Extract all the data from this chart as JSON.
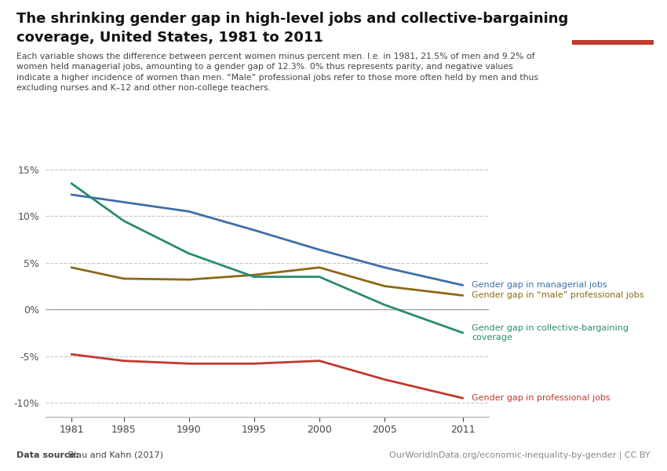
{
  "title_line1": "The shrinking gender gap in high-level jobs and collective-bargaining",
  "title_line2": "coverage, United States, 1981 to 2011",
  "subtitle": "Each variable shows the difference between percent women minus percent men. I.e. in 1981, 21.5% of men and 9.2% of\nwomen held managerial jobs, amounting to a gender gap of 12.3%. 0% thus represents parity, and negative values\nindicate a higher incidence of women than men. “Male” professional jobs refer to those more often held by men and thus\nexcluding nurses and K–12 and other non-college teachers.",
  "datasource_bold": "Data source:",
  "datasource_plain": " Blau and Kahn (2017)",
  "url": "OurWorldInData.org/economic-inequality-by-gender | CC BY",
  "series": {
    "managerial": {
      "label": "Gender gap in managerial jobs",
      "color": "#3d6fa8",
      "years": [
        1981,
        1985,
        1990,
        1995,
        2000,
        2005,
        2011
      ],
      "values": [
        12.3,
        11.5,
        10.5,
        8.5,
        6.4,
        4.5,
        2.6
      ]
    },
    "male_professional": {
      "label": "Gender gap in “male” professional jobs",
      "color": "#8b6914",
      "years": [
        1981,
        1985,
        1990,
        1995,
        2000,
        2005,
        2011
      ],
      "values": [
        4.5,
        3.3,
        3.2,
        3.7,
        4.5,
        2.5,
        1.5
      ]
    },
    "collective": {
      "label": "Gender gap in collective-bargaining\ncoverage",
      "color": "#2a8a72",
      "years": [
        1981,
        1985,
        1990,
        1995,
        2000,
        2005,
        2011
      ],
      "values": [
        13.5,
        9.5,
        6.0,
        3.5,
        3.5,
        0.5,
        -2.5
      ]
    },
    "professional": {
      "label": "Gender gap in professional jobs",
      "color": "#c0392b",
      "years": [
        1981,
        1985,
        1990,
        1995,
        2000,
        2005,
        2011
      ],
      "values": [
        -4.8,
        -5.5,
        -5.8,
        -5.8,
        -5.5,
        -7.5,
        -9.5
      ]
    }
  },
  "xlim": [
    1979,
    2013
  ],
  "ylim": [
    -11.5,
    16.5
  ],
  "yticks": [
    -10,
    -5,
    0,
    5,
    10,
    15
  ],
  "xticks": [
    1981,
    1985,
    1990,
    1995,
    2000,
    2005,
    2011
  ],
  "background_color": "#ffffff",
  "grid_color": "#c8c8c8",
  "owid_box_bg": "#1a3a5c",
  "owid_box_red": "#c0392b"
}
